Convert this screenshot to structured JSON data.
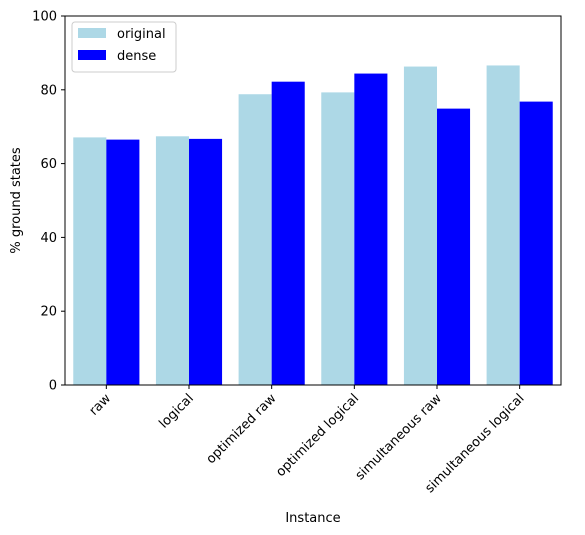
{
  "chart_data": {
    "type": "bar",
    "title": "",
    "xlabel": "Instance",
    "ylabel": "% ground states",
    "ylim": [
      0,
      100
    ],
    "yticks": [
      0,
      20,
      40,
      60,
      80,
      100
    ],
    "categories": [
      "raw",
      "logical",
      "optimized raw",
      "optimized logical",
      "simultaneous raw",
      "simultaneous logical"
    ],
    "series": [
      {
        "name": "original",
        "color": "#add8e6",
        "values": [
          67.1,
          67.4,
          78.8,
          79.3,
          86.3,
          86.6
        ]
      },
      {
        "name": "dense",
        "color": "#0000ff",
        "values": [
          66.5,
          66.7,
          82.2,
          84.4,
          74.9,
          76.8
        ]
      }
    ],
    "legend_position": "top-left",
    "grid": false
  }
}
